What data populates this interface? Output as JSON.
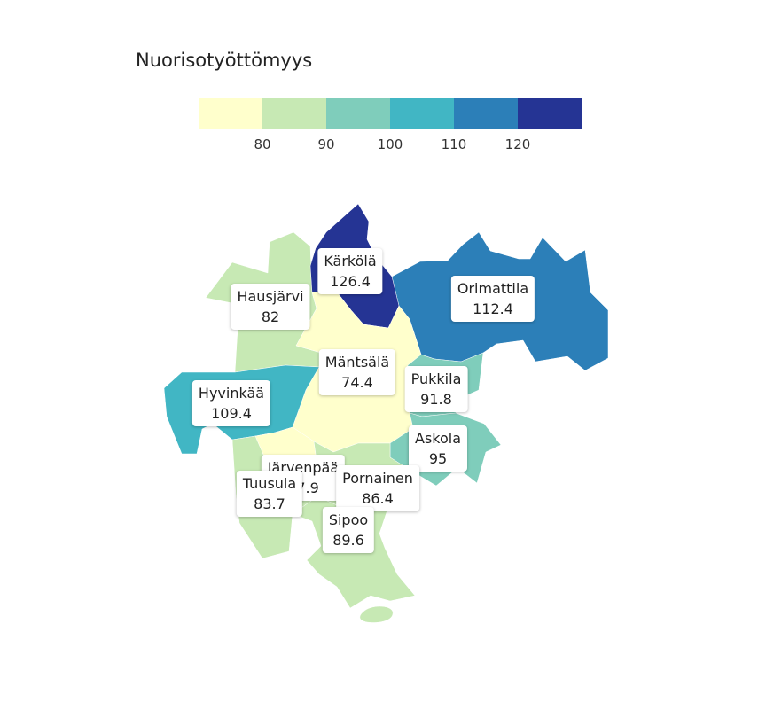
{
  "title": "Nuorisotyöttömyys",
  "legend": {
    "colors": [
      "#ffffcc",
      "#c7e9b4",
      "#7fcdbb",
      "#41b6c4",
      "#2c7fb8",
      "#253494"
    ],
    "ticks": [
      "80",
      "90",
      "100",
      "110",
      "120"
    ]
  },
  "regions": [
    {
      "name": "Kärkölä",
      "value": "126.4",
      "color": "#253494"
    },
    {
      "name": "Orimattila",
      "value": "112.4",
      "color": "#2c7fb8"
    },
    {
      "name": "Hausjärvi",
      "value": "82",
      "color": "#c7e9b4"
    },
    {
      "name": "Mäntsälä",
      "value": "74.4",
      "color": "#ffffcc"
    },
    {
      "name": "Hyvinkää",
      "value": "109.4",
      "color": "#41b6c4"
    },
    {
      "name": "Pukkila",
      "value": "91.8",
      "color": "#7fcdbb"
    },
    {
      "name": "Askola",
      "value": "95",
      "color": "#7fcdbb"
    },
    {
      "name": "Järvenpää",
      "value": "77.9",
      "color": "#ffffcc"
    },
    {
      "name": "Tuusula",
      "value": "83.7",
      "color": "#c7e9b4"
    },
    {
      "name": "Pornainen",
      "value": "86.4",
      "color": "#c7e9b4"
    },
    {
      "name": "Sipoo",
      "value": "89.6",
      "color": "#c7e9b4"
    }
  ]
}
